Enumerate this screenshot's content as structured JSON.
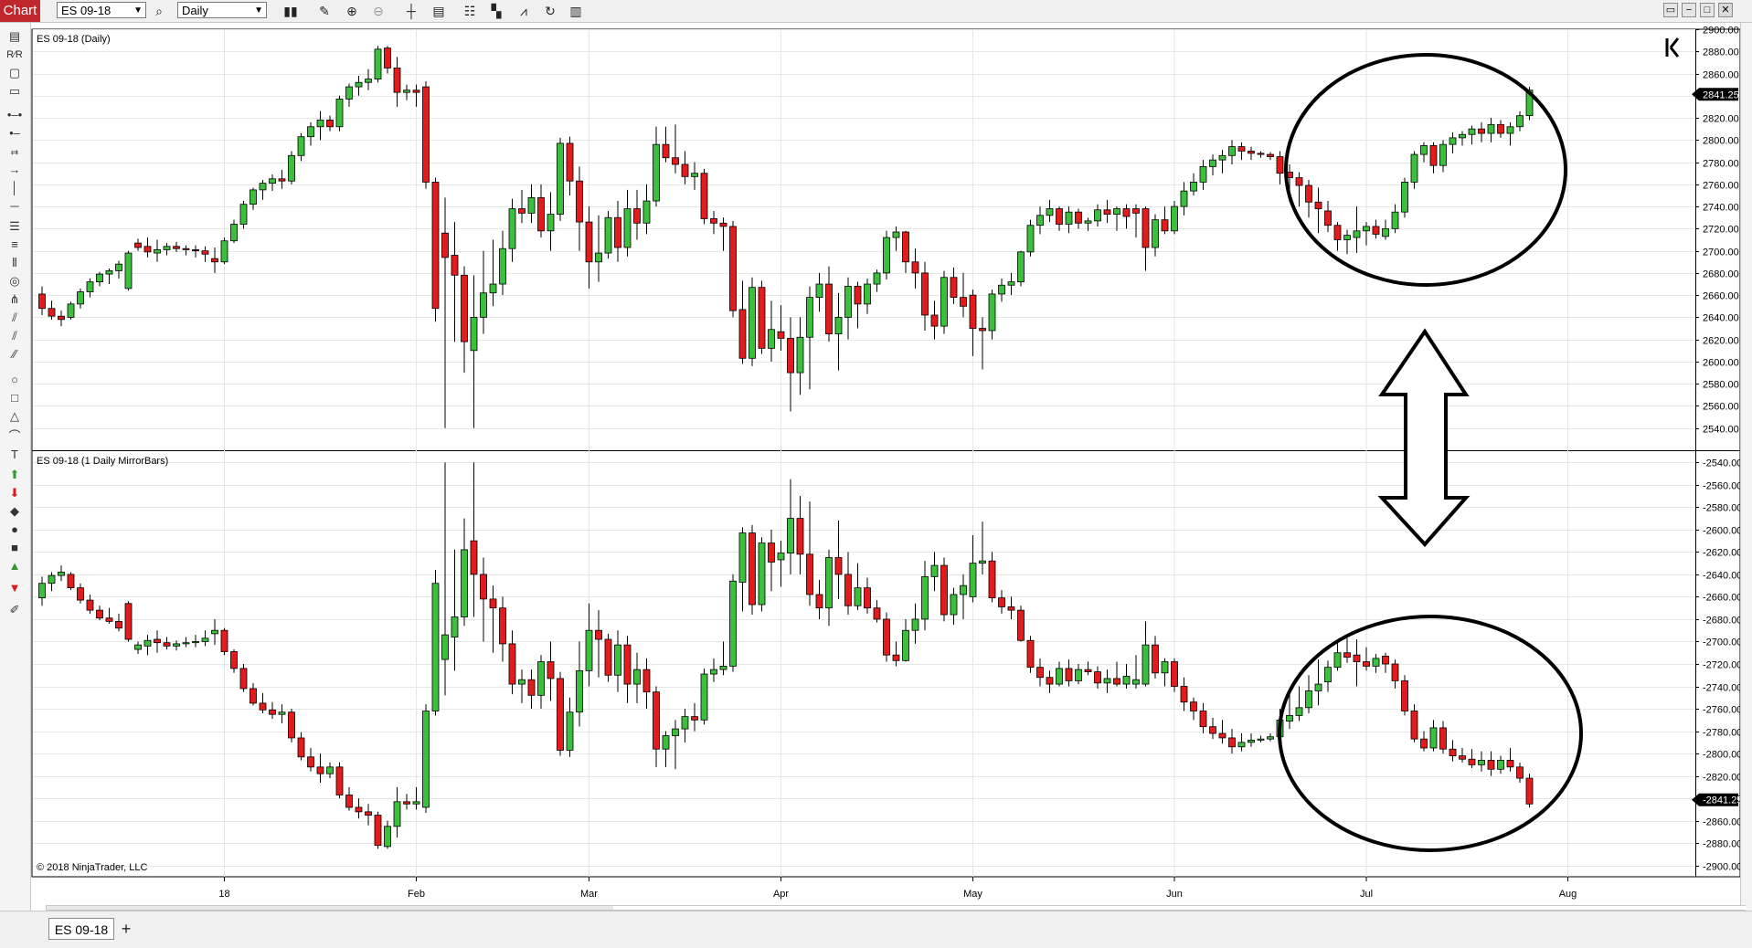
{
  "app": {
    "window_tab": "Chart",
    "instrument": "ES 09-18",
    "period": "Daily",
    "window_buttons": [
      "▭",
      "−",
      "□",
      "✕"
    ],
    "bottom_tab": "ES 09-18",
    "add_tab": "+"
  },
  "toolbar_icons": [
    "bar-type-icon",
    "pencil-icon",
    "zoom-in-icon",
    "zoom-out-icon",
    "crosshair-icon",
    "data-box-icon",
    "properties-icon",
    "strategies-icon",
    "indicators-icon",
    "refresh-icon",
    "split-icon"
  ],
  "left_tools": [
    "ruler-icon",
    "risk-reward-icon",
    "region-icon",
    "region-highlight-icon",
    "line-icon",
    "ray-icon",
    "extended-line-icon",
    "arrow-line-icon",
    "vertical-line-icon",
    "horizontal-line-icon",
    "fib-retracement-icon",
    "fib-extension-icon",
    "fib-time-icon",
    "fib-circle-icon",
    "andrews-pitchfork-icon",
    "gann-fan-icon",
    "regression-channel-icon",
    "trend-channel-icon",
    "ellipse-icon",
    "rectangle-icon",
    "triangle-icon",
    "arc-icon",
    "text-icon",
    "arrow-up-icon",
    "arrow-down-icon",
    "diamond-icon",
    "dot-icon",
    "square-icon",
    "triangle-up-icon",
    "triangle-down-icon",
    "marker-icon"
  ],
  "colors": {
    "up": "#3cbf3c",
    "down": "#e31b1b",
    "wick": "#000000",
    "grid": "#e6e6e6",
    "annotation": "#000000"
  },
  "chart_data": [
    {
      "type": "candlestick",
      "title": "ES 09-18 (Daily)",
      "ylim": [
        2520,
        2900
      ],
      "yticks": [
        "2900.00",
        "2880.00",
        "2860.00",
        "2840.00",
        "2820.00",
        "2800.00",
        "2780.00",
        "2760.00",
        "2740.00",
        "2720.00",
        "2700.00",
        "2680.00",
        "2660.00",
        "2640.00",
        "2620.00",
        "2600.00",
        "2580.00",
        "2560.00",
        "2540.00"
      ],
      "last_price": "2841.25",
      "x_labels": [
        {
          "label": "18",
          "index": 19
        },
        {
          "label": "Feb",
          "index": 39
        },
        {
          "label": "Mar",
          "index": 57
        },
        {
          "label": "Apr",
          "index": 77
        },
        {
          "label": "May",
          "index": 97
        },
        {
          "label": "Jun",
          "index": 118
        },
        {
          "label": "Jul",
          "index": 138
        },
        {
          "label": "Aug",
          "index": 159
        }
      ],
      "annotations": [
        "ellipse-highlight-recent-rally",
        "double-arrow-mirror"
      ],
      "ohlc": [
        [
          2661,
          2668,
          2642,
          2648
        ],
        [
          2648,
          2655,
          2638,
          2641
        ],
        [
          2641,
          2646,
          2632,
          2638
        ],
        [
          2640,
          2654,
          2638,
          2652
        ],
        [
          2652,
          2666,
          2648,
          2663
        ],
        [
          2663,
          2675,
          2658,
          2672
        ],
        [
          2672,
          2681,
          2668,
          2679
        ],
        [
          2679,
          2684,
          2670,
          2682
        ],
        [
          2682,
          2691,
          2675,
          2688
        ],
        [
          2666,
          2700,
          2664,
          2698
        ],
        [
          2707,
          2711,
          2700,
          2703
        ],
        [
          2704,
          2712,
          2694,
          2699
        ],
        [
          2698,
          2710,
          2690,
          2701
        ],
        [
          2701,
          2707,
          2696,
          2704
        ],
        [
          2704,
          2708,
          2699,
          2702
        ],
        [
          2702,
          2705,
          2696,
          2701
        ],
        [
          2701,
          2705,
          2694,
          2700
        ],
        [
          2700,
          2704,
          2690,
          2697
        ],
        [
          2693,
          2703,
          2680,
          2690
        ],
        [
          2690,
          2712,
          2688,
          2709
        ],
        [
          2709,
          2728,
          2707,
          2724
        ],
        [
          2724,
          2745,
          2720,
          2742
        ],
        [
          2742,
          2757,
          2737,
          2755
        ],
        [
          2755,
          2764,
          2746,
          2761
        ],
        [
          2761,
          2769,
          2754,
          2765
        ],
        [
          2765,
          2773,
          2756,
          2763
        ],
        [
          2763,
          2790,
          2760,
          2786
        ],
        [
          2786,
          2806,
          2781,
          2803
        ],
        [
          2803,
          2816,
          2795,
          2812
        ],
        [
          2812,
          2826,
          2800,
          2818
        ],
        [
          2818,
          2822,
          2808,
          2812
        ],
        [
          2812,
          2840,
          2808,
          2837
        ],
        [
          2837,
          2851,
          2830,
          2848
        ],
        [
          2848,
          2858,
          2840,
          2852
        ],
        [
          2852,
          2864,
          2845,
          2855
        ],
        [
          2855,
          2885,
          2852,
          2882
        ],
        [
          2883,
          2885,
          2860,
          2865
        ],
        [
          2865,
          2875,
          2830,
          2843
        ],
        [
          2843,
          2850,
          2836,
          2845
        ],
        [
          2845,
          2850,
          2830,
          2843
        ],
        [
          2848,
          2853,
          2756,
          2762
        ],
        [
          2762,
          2766,
          2636,
          2648
        ],
        [
          2716,
          2748,
          2540,
          2694
        ],
        [
          2696,
          2726,
          2618,
          2678
        ],
        [
          2678,
          2686,
          2590,
          2618
        ],
        [
          2610,
          2678,
          2540,
          2640
        ],
        [
          2640,
          2700,
          2625,
          2662
        ],
        [
          2662,
          2710,
          2650,
          2670
        ],
        [
          2670,
          2718,
          2660,
          2702
        ],
        [
          2702,
          2747,
          2690,
          2738
        ],
        [
          2738,
          2755,
          2725,
          2734
        ],
        [
          2734,
          2760,
          2725,
          2748
        ],
        [
          2748,
          2760,
          2712,
          2718
        ],
        [
          2718,
          2753,
          2700,
          2733
        ],
        [
          2733,
          2802,
          2727,
          2797
        ],
        [
          2797,
          2803,
          2750,
          2763
        ],
        [
          2763,
          2776,
          2700,
          2726
        ],
        [
          2726,
          2740,
          2666,
          2690
        ],
        [
          2690,
          2732,
          2672,
          2698
        ],
        [
          2698,
          2736,
          2693,
          2730
        ],
        [
          2730,
          2745,
          2690,
          2703
        ],
        [
          2703,
          2755,
          2695,
          2738
        ],
        [
          2738,
          2755,
          2710,
          2725
        ],
        [
          2725,
          2760,
          2715,
          2745
        ],
        [
          2745,
          2812,
          2740,
          2796
        ],
        [
          2796,
          2812,
          2780,
          2784
        ],
        [
          2784,
          2814,
          2770,
          2778
        ],
        [
          2778,
          2790,
          2760,
          2767
        ],
        [
          2767,
          2780,
          2755,
          2770
        ],
        [
          2770,
          2774,
          2724,
          2729
        ],
        [
          2729,
          2736,
          2715,
          2725
        ],
        [
          2725,
          2730,
          2700,
          2722
        ],
        [
          2722,
          2727,
          2640,
          2646
        ],
        [
          2647,
          2673,
          2598,
          2603
        ],
        [
          2603,
          2676,
          2596,
          2667
        ],
        [
          2667,
          2673,
          2607,
          2612
        ],
        [
          2612,
          2655,
          2600,
          2629
        ],
        [
          2627,
          2651,
          2610,
          2621
        ],
        [
          2621,
          2640,
          2555,
          2590
        ],
        [
          2590,
          2640,
          2570,
          2622
        ],
        [
          2622,
          2668,
          2575,
          2658
        ],
        [
          2658,
          2680,
          2645,
          2670
        ],
        [
          2670,
          2686,
          2618,
          2625
        ],
        [
          2625,
          2662,
          2592,
          2640
        ],
        [
          2640,
          2676,
          2620,
          2668
        ],
        [
          2668,
          2672,
          2630,
          2652
        ],
        [
          2652,
          2675,
          2643,
          2670
        ],
        [
          2670,
          2683,
          2663,
          2680
        ],
        [
          2680,
          2718,
          2674,
          2712
        ],
        [
          2712,
          2722,
          2700,
          2717
        ],
        [
          2717,
          2718,
          2680,
          2690
        ],
        [
          2690,
          2702,
          2666,
          2680
        ],
        [
          2680,
          2690,
          2628,
          2642
        ],
        [
          2642,
          2655,
          2620,
          2632
        ],
        [
          2632,
          2682,
          2625,
          2676
        ],
        [
          2676,
          2685,
          2652,
          2658
        ],
        [
          2658,
          2680,
          2640,
          2650
        ],
        [
          2660,
          2665,
          2605,
          2630
        ],
        [
          2630,
          2640,
          2593,
          2628
        ],
        [
          2628,
          2665,
          2620,
          2661
        ],
        [
          2661,
          2675,
          2654,
          2669
        ],
        [
          2669,
          2680,
          2660,
          2672
        ],
        [
          2672,
          2700,
          2668,
          2699
        ],
        [
          2699,
          2728,
          2695,
          2723
        ],
        [
          2723,
          2740,
          2715,
          2732
        ],
        [
          2732,
          2746,
          2726,
          2738
        ],
        [
          2738,
          2740,
          2718,
          2724
        ],
        [
          2724,
          2740,
          2716,
          2735
        ],
        [
          2735,
          2738,
          2720,
          2725
        ],
        [
          2725,
          2730,
          2718,
          2727
        ],
        [
          2727,
          2742,
          2722,
          2737
        ],
        [
          2737,
          2746,
          2725,
          2733
        ],
        [
          2733,
          2740,
          2718,
          2738
        ],
        [
          2738,
          2742,
          2720,
          2731
        ],
        [
          2738,
          2742,
          2712,
          2734
        ],
        [
          2738,
          2740,
          2682,
          2703
        ],
        [
          2703,
          2733,
          2695,
          2728
        ],
        [
          2728,
          2740,
          2715,
          2718
        ],
        [
          2718,
          2745,
          2715,
          2740
        ],
        [
          2740,
          2762,
          2732,
          2754
        ],
        [
          2754,
          2770,
          2750,
          2762
        ],
        [
          2762,
          2782,
          2755,
          2776
        ],
        [
          2776,
          2787,
          2768,
          2782
        ],
        [
          2782,
          2791,
          2770,
          2786
        ],
        [
          2786,
          2800,
          2778,
          2794
        ],
        [
          2794,
          2798,
          2782,
          2790
        ],
        [
          2790,
          2794,
          2782,
          2788
        ],
        [
          2788,
          2790,
          2784,
          2787
        ],
        [
          2787,
          2789,
          2782,
          2785
        ],
        [
          2785,
          2790,
          2760,
          2770
        ],
        [
          2771,
          2778,
          2744,
          2766
        ],
        [
          2766,
          2771,
          2740,
          2759
        ],
        [
          2759,
          2764,
          2730,
          2744
        ],
        [
          2744,
          2757,
          2716,
          2738
        ],
        [
          2736,
          2745,
          2717,
          2723
        ],
        [
          2723,
          2726,
          2700,
          2710
        ],
        [
          2710,
          2719,
          2697,
          2714
        ],
        [
          2712,
          2740,
          2698,
          2718
        ],
        [
          2718,
          2726,
          2705,
          2722
        ],
        [
          2722,
          2728,
          2711,
          2715
        ],
        [
          2713,
          2728,
          2710,
          2720
        ],
        [
          2720,
          2742,
          2716,
          2735
        ],
        [
          2735,
          2766,
          2730,
          2762
        ],
        [
          2762,
          2790,
          2756,
          2787
        ],
        [
          2787,
          2798,
          2780,
          2795
        ],
        [
          2795,
          2798,
          2770,
          2777
        ],
        [
          2777,
          2800,
          2771,
          2796
        ],
        [
          2796,
          2807,
          2788,
          2802
        ],
        [
          2802,
          2808,
          2795,
          2805
        ],
        [
          2805,
          2813,
          2796,
          2810
        ],
        [
          2810,
          2816,
          2798,
          2806
        ],
        [
          2806,
          2820,
          2798,
          2814
        ],
        [
          2814,
          2818,
          2802,
          2806
        ],
        [
          2806,
          2816,
          2795,
          2812
        ],
        [
          2812,
          2826,
          2808,
          2822
        ],
        [
          2822,
          2848,
          2818,
          2845
        ]
      ]
    },
    {
      "type": "candlestick",
      "title": "ES 09-18 (1 Daily MirrorBars)",
      "mirror_of": 0,
      "ylim": [
        -2910,
        -2530
      ],
      "yticks": [
        "-2540.00",
        "-2560.00",
        "-2580.00",
        "-2600.00",
        "-2620.00",
        "-2640.00",
        "-2660.00",
        "-2680.00",
        "-2700.00",
        "-2720.00",
        "-2740.00",
        "-2760.00",
        "-2780.00",
        "-2800.00",
        "-2820.00",
        "-2840.00",
        "-2860.00",
        "-2880.00",
        "-2900.00"
      ],
      "last_price": "-2841.25",
      "annotations": [
        "ellipse-highlight-recent-decline"
      ]
    }
  ],
  "copyright": "© 2018 NinjaTrader, LLC"
}
